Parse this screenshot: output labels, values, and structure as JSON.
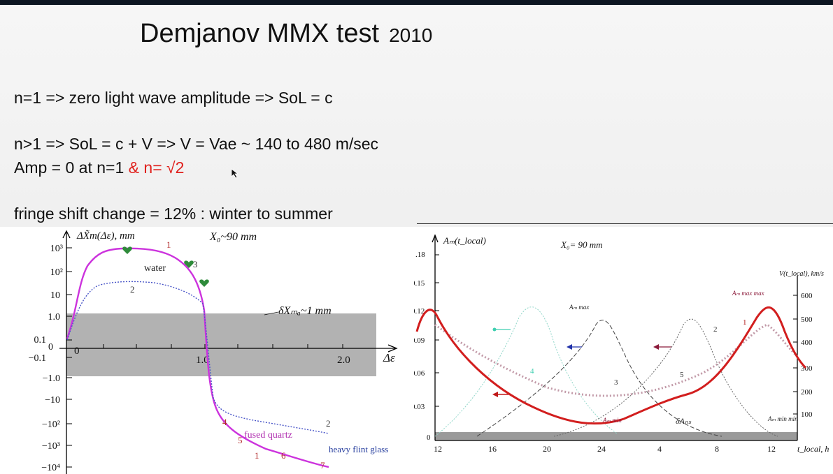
{
  "title": {
    "main": "Demjanov MMX test",
    "year": "2010"
  },
  "lines": {
    "line1": "n=1  =>  zero light wave amplitude  =>  SoL = c",
    "line2": "n>1  =>  SoL = c + V     => V = Vae ~ 140 to 480 m/sec",
    "line3_a": "Amp = 0 at  n=1 ",
    "line3_b": "& n= √2",
    "line4": "fringe shift change   = 12% : winter to summer"
  },
  "colors": {
    "accent_red": "#e0201c",
    "magenta": "#cc33dd",
    "curve_red": "#d21e1e",
    "band_gray": "#b2b2b2"
  },
  "chart_data": [
    {
      "type": "line",
      "ylabel": "ΔX̃m(Δε), mm",
      "xlabel": "Δε",
      "annotation_x0": "X₀~90 mm",
      "annotation_band": "δXₘₐ~1 mm",
      "y_ticks": [
        "10³",
        "10²",
        "10",
        "1.0",
        "0.1",
        "0",
        "−0.1",
        "−1.0",
        "−10",
        "−10²",
        "−10³",
        "−10⁴"
      ],
      "x_ticks": [
        "0",
        "1.0",
        "2.0"
      ],
      "labels": {
        "water": "water",
        "fused_quartz": "fused quartz",
        "heavy_flint": "heavy flint glass"
      },
      "series": [
        {
          "name": "1",
          "x": [
            0.0,
            0.1,
            0.3,
            0.5,
            0.8,
            1.0,
            1.1,
            1.5,
            2.1
          ],
          "y_label": [
            "0",
            "10²",
            "10³",
            "10³",
            "10²",
            "10",
            "−10",
            "−10³",
            "−10³"
          ]
        },
        {
          "name": "2",
          "x": [
            0.0,
            0.1,
            0.3,
            0.5,
            0.8,
            1.0,
            1.1,
            1.5,
            2.1
          ],
          "y_label": [
            "0",
            "10",
            "10²",
            "10²",
            "10",
            "1.0",
            "−10",
            "−10²",
            "−10²"
          ]
        }
      ],
      "series_tags": [
        "1",
        "2",
        "2",
        "3",
        "4",
        "5",
        "6",
        "7"
      ]
    },
    {
      "type": "line",
      "ylabel": "Aₘ(t_local)",
      "y2label": "V(t_local), km/s",
      "xlabel": "t_local, h",
      "annotation_x0": "X₀= 90 mm",
      "y_ticks": [
        ".18",
        "0.15",
        "0.12",
        "0.09",
        "0.06",
        "0.03",
        "0"
      ],
      "y2_ticks": [
        "600",
        "500",
        "400",
        "300",
        "200",
        "100"
      ],
      "x_ticks": [
        "12",
        "16",
        "20",
        "24",
        "4",
        "8",
        "12"
      ],
      "labels": {
        "am_max": "Aₘ max",
        "am_max_max": "Aₘ max max",
        "am_min": "Aₘ min",
        "am_min_min": "Aₘ min min",
        "delta_a": "δAₙₛ",
        "c1": "1",
        "c2": "2",
        "c3": "3",
        "c4": "4",
        "c5": "5"
      },
      "series": [
        {
          "name": "1",
          "x": [
            12,
            13,
            16,
            20,
            22,
            24,
            26,
            28,
            30,
            32,
            34,
            36,
            37
          ],
          "y": [
            0.11,
            0.12,
            0.08,
            0.03,
            0.01,
            0.005,
            0.012,
            0.025,
            0.035,
            0.055,
            0.11,
            0.085,
            0.07
          ]
        }
      ]
    }
  ]
}
